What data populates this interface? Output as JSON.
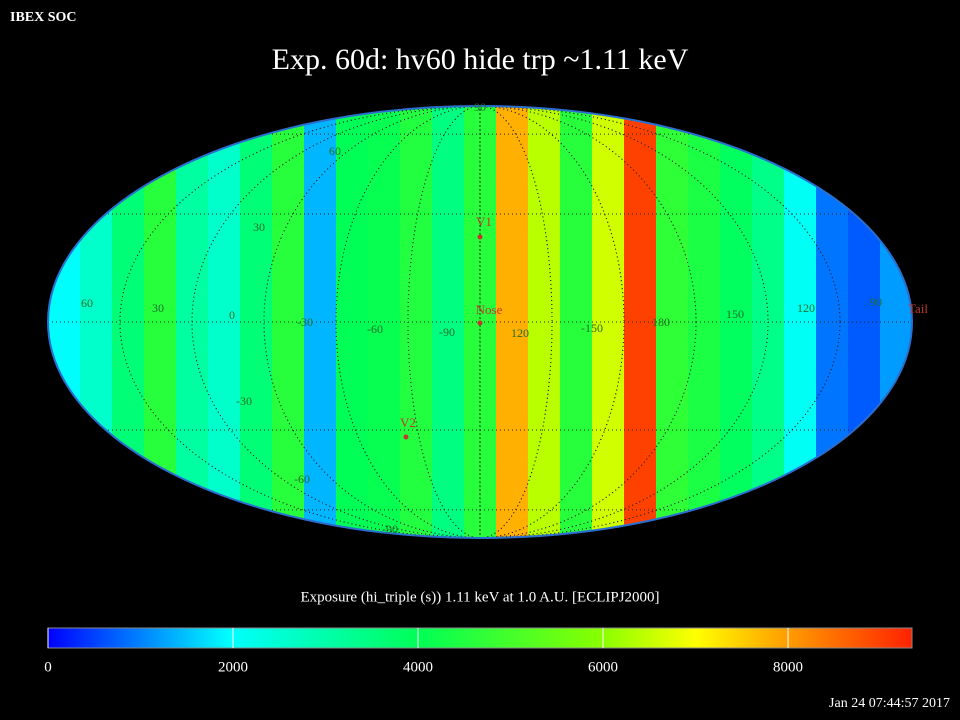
{
  "header": {
    "source": "IBEX SOC",
    "title": "Exp.   60d: hv60 hide trp ~1.11 keV"
  },
  "map": {
    "band_values": [
      2000,
      2600,
      3600,
      4600,
      3100,
      2600,
      3600,
      4600,
      1400,
      4000,
      4100,
      4500,
      3500,
      4600,
      7800,
      6400,
      4600,
      6600,
      9000,
      4700,
      4400,
      3900,
      3400,
      2100,
      900,
      700,
      1200
    ],
    "graticule_labels": [
      "90",
      "60",
      "30",
      "-30",
      "-60",
      "-90",
      "60",
      "30",
      "0",
      "-30",
      "-60",
      "-90",
      "120",
      "-150",
      "180",
      "150",
      "120",
      "90"
    ],
    "markers": [
      "V1",
      "Nose",
      "V2",
      "Tail"
    ]
  },
  "colorbar": {
    "caption": "Exposure (hi_triple (s))  1.11 keV at 1.0 A.U. [ECLIPJ2000]",
    "lim": [
      0,
      9340
    ],
    "ticks": [
      0,
      2000,
      4000,
      6000,
      8000
    ]
  },
  "timestamp": "Jan 24 07:44:57 2017"
}
